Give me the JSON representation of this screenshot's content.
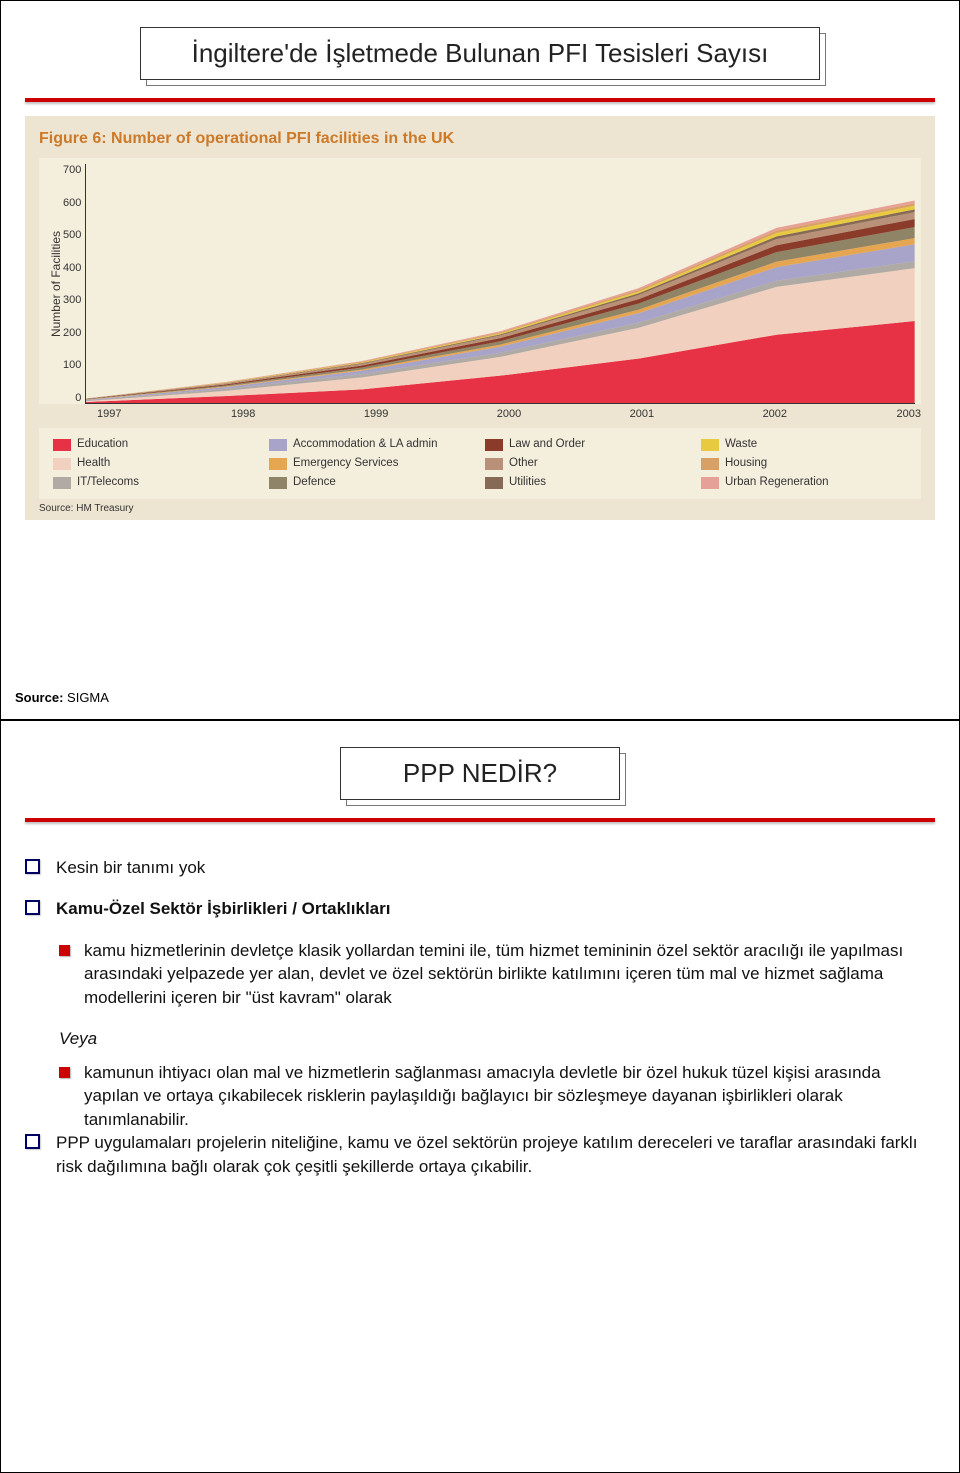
{
  "slide1": {
    "title": "İngiltere'de İşletmede Bulunan PFI Tesisleri Sayısı",
    "figure_title": "Figure 6: Number of operational PFI facilities in the UK",
    "y_axis_label": "Number of Facilities",
    "source_sub": "Source: HM Treasury",
    "source_outer_label": "Source:",
    "source_outer_value": "SIGMA",
    "chart": {
      "type": "stacked-area",
      "background_color": "#ede5d2",
      "plot_background": "#f4eedd",
      "title_color": "#cc7a29",
      "grid_color": "#cfc7b0",
      "axis_color": "#333333",
      "ylim": [
        0,
        700
      ],
      "yticks": [
        0,
        100,
        200,
        300,
        400,
        500,
        600,
        700
      ],
      "x_categories": [
        "1997",
        "1998",
        "1999",
        "2000",
        "2001",
        "2002",
        "2003"
      ],
      "series": [
        {
          "name": "Education",
          "color": "#e63244",
          "values": [
            3,
            20,
            40,
            80,
            130,
            200,
            240
          ]
        },
        {
          "name": "Health",
          "color": "#f2d0c0",
          "values": [
            2,
            15,
            35,
            55,
            90,
            140,
            155
          ]
        },
        {
          "name": "IT/Telecoms",
          "color": "#b0aaa5",
          "values": [
            2,
            6,
            10,
            12,
            15,
            18,
            20
          ]
        },
        {
          "name": "Accommodation & LA admin",
          "color": "#a8a3c9",
          "values": [
            2,
            5,
            10,
            18,
            28,
            40,
            50
          ]
        },
        {
          "name": "Emergency Services",
          "color": "#e6a651",
          "values": [
            1,
            2,
            3,
            6,
            10,
            16,
            18
          ]
        },
        {
          "name": "Defence",
          "color": "#8f8566",
          "values": [
            1,
            3,
            6,
            10,
            18,
            28,
            32
          ]
        },
        {
          "name": "Law and Order",
          "color": "#8a3b2a",
          "values": [
            1,
            3,
            6,
            9,
            13,
            20,
            24
          ]
        },
        {
          "name": "Other",
          "color": "#b99178",
          "values": [
            1,
            3,
            5,
            8,
            12,
            18,
            20
          ]
        },
        {
          "name": "Utilities",
          "color": "#876a55",
          "values": [
            0,
            1,
            2,
            3,
            5,
            8,
            8
          ]
        },
        {
          "name": "Waste",
          "color": "#e8c93f",
          "values": [
            0,
            1,
            2,
            3,
            5,
            10,
            11
          ]
        },
        {
          "name": "Housing",
          "color": "#d9a066",
          "values": [
            0,
            1,
            2,
            3,
            5,
            7,
            7
          ]
        },
        {
          "name": "Urban Regeneration",
          "color": "#e6a095",
          "values": [
            0,
            1,
            2,
            3,
            5,
            8,
            8
          ]
        }
      ],
      "legend_layout": {
        "cols": 4,
        "rows": 3
      }
    }
  },
  "slide2": {
    "title": "PPP NEDİR?",
    "items": [
      {
        "type": "box",
        "text": "Kesin bir tanımı yok"
      },
      {
        "type": "box",
        "text": "Kamu-Özel Sektör İşbirlikleri / Ortaklıkları",
        "bold": true
      },
      {
        "type": "square",
        "text": "kamu hizmetlerinin devletçe klasik yollardan temini ile, tüm hizmet temininin özel sektör aracılığı ile yapılması arasındaki yelpazede yer alan, devlet ve özel sektörün birlikte katılımını içeren tüm mal ve hizmet sağlama modellerini içeren bir \"üst kavram\" olarak"
      },
      {
        "type": "veya",
        "text": "Veya"
      },
      {
        "type": "square",
        "text": "kamunun ihtiyacı olan mal ve hizmetlerin sağlanması amacıyla devletle bir özel hukuk tüzel kişisi arasında yapılan ve ortaya çıkabilecek risklerin paylaşıldığı bağlayıcı bir sözleşmeye dayanan işbirlikleri olarak tanımlanabilir."
      },
      {
        "type": "box",
        "text": "PPP uygulamaları projelerin niteliğine, kamu ve özel sektörün projeye katılım dereceleri ve taraflar arasındaki farklı risk dağılımına bağlı olarak çok çeşitli şekillerde ortaya çıkabilir."
      }
    ],
    "bullet_colors": {
      "box_border": "#000066",
      "square_fill": "#cc0000"
    },
    "redline_color": "#cc0000"
  }
}
